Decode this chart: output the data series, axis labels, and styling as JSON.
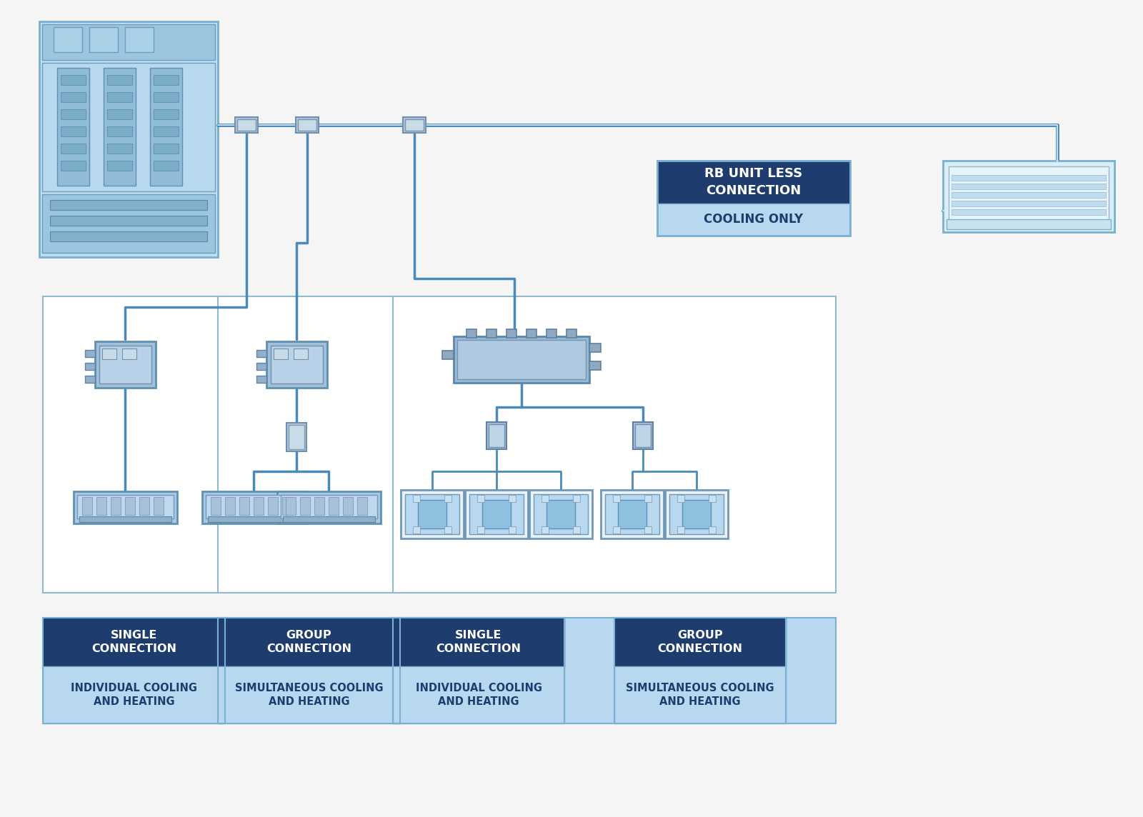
{
  "bg_color": "#f5f5f5",
  "dark_blue": "#1a3a5c",
  "mid_blue": "#2b5fa0",
  "light_blue": "#a8d0e8",
  "lighter_blue": "#c8e4f4",
  "lightest_blue": "#dff0fa",
  "box_border": "#7ab0d0",
  "line_color": "#5b9bc8",
  "line_color2": "#4a8ab8",
  "labels": {
    "box1_title": "SINGLE\nCONNECTION",
    "box1_sub": "INDIVIDUAL COOLING\nAND HEATING",
    "box2_title": "GROUP\nCONNECTION",
    "box2_sub": "SIMULTANEOUS COOLING\nAND HEATING",
    "box3_title": "SINGLE\nCONNECTION",
    "box3_sub": "INDIVIDUAL COOLING\nAND HEATING",
    "box4_title": "GROUP\nCONNECTION",
    "box4_sub": "SIMULTANEOUS COOLING\nAND HEATING",
    "rb_title": "RB UNIT LESS\nCONNECTION",
    "rb_sub": "COOLING ONLY",
    "plus_sign": "+"
  }
}
